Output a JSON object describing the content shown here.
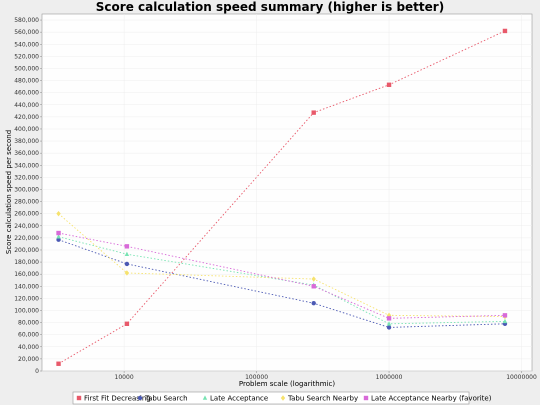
{
  "chart_data": {
    "type": "scatter",
    "title": "Score calculation speed summary (higher is better)",
    "xlabel": "Problem scale (logarithmic)",
    "ylabel": "Score calculation speed per second",
    "xscale": "log",
    "xlim": [
      2400,
      12000000
    ],
    "ylim": [
      0,
      590000
    ],
    "x_ticks": [
      10000,
      100000,
      1000000,
      10000000
    ],
    "x_tick_labels": [
      "10000",
      "100000",
      "1000000",
      "10000000"
    ],
    "y_ticks": [
      0,
      20000,
      40000,
      60000,
      80000,
      100000,
      120000,
      140000,
      160000,
      180000,
      200000,
      220000,
      240000,
      260000,
      280000,
      300000,
      320000,
      340000,
      360000,
      380000,
      400000,
      420000,
      440000,
      460000,
      480000,
      500000,
      520000,
      540000,
      560000,
      580000
    ],
    "y_tick_labels": [
      "0",
      "20,000",
      "40,000",
      "60,000",
      "80,000",
      "100,000",
      "120,000",
      "140,000",
      "160,000",
      "180,000",
      "200,000",
      "220,000",
      "240,000",
      "260,000",
      "280,000",
      "300,000",
      "320,000",
      "340,000",
      "360,000",
      "380,000",
      "400,000",
      "420,000",
      "440,000",
      "460,000",
      "480,000",
      "500,000",
      "520,000",
      "540,000",
      "560,000",
      "580,000"
    ],
    "grid": true,
    "legend_position": "bottom",
    "series": [
      {
        "name": "First Fit Decreasing",
        "color": "#e8596a",
        "marker": "square",
        "x": [
          3200,
          10500,
          270000,
          1000000,
          7500000
        ],
        "y": [
          12000,
          78000,
          427000,
          473000,
          562000
        ]
      },
      {
        "name": "Tabu Search",
        "color": "#4b59b4",
        "marker": "circle",
        "x": [
          3200,
          10500,
          270000,
          1000000,
          7500000
        ],
        "y": [
          217000,
          177000,
          112000,
          72000,
          78000
        ]
      },
      {
        "name": "Late Acceptance",
        "color": "#77e3b2",
        "marker": "triangle",
        "x": [
          3200,
          10500,
          270000,
          1000000,
          7500000
        ],
        "y": [
          222000,
          193000,
          142000,
          78000,
          82000
        ]
      },
      {
        "name": "Tabu Search Nearby",
        "color": "#f6e26e",
        "marker": "diamond",
        "x": [
          3200,
          10500,
          270000,
          1000000,
          7500000
        ],
        "y": [
          260000,
          162000,
          152000,
          92000,
          90000
        ]
      },
      {
        "name": "Late Acceptance Nearby (favorite)",
        "color": "#d86ad8",
        "marker": "square",
        "x": [
          3200,
          10500,
          270000,
          1000000,
          7500000
        ],
        "y": [
          228000,
          206000,
          140000,
          87000,
          92000
        ]
      }
    ]
  }
}
